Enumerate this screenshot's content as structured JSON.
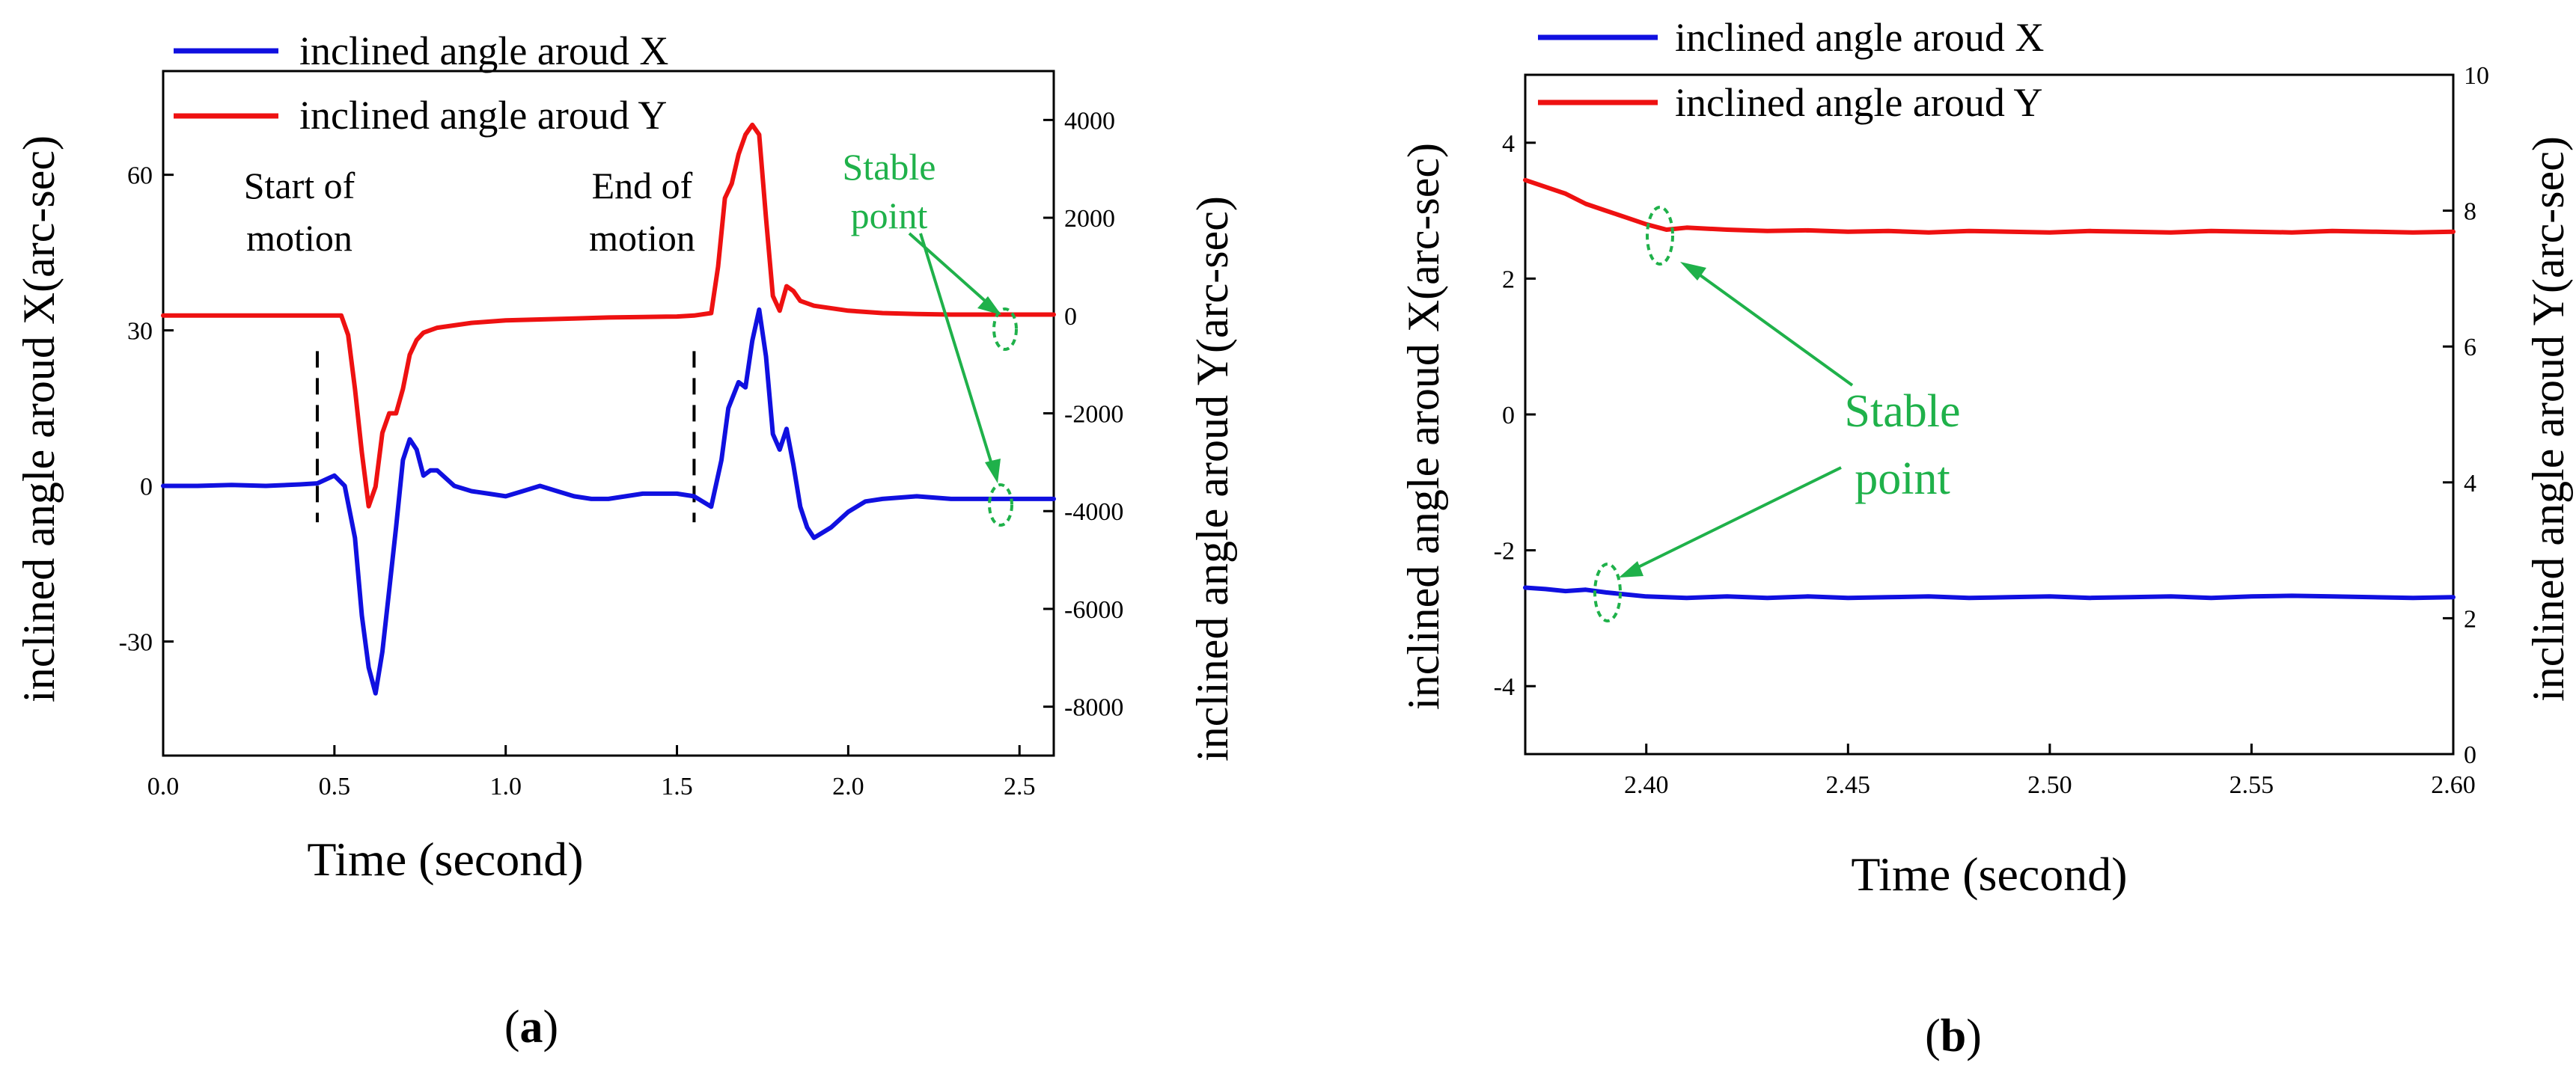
{
  "colors": {
    "series_x": "#1010e0",
    "series_y": "#ee1111",
    "annotation": "#1fb14a"
  },
  "panel_a_label": "a",
  "panel_b_label": "b",
  "chart_data": [
    {
      "id": "a",
      "type": "line",
      "xlabel": "Time (second)",
      "ylabel_left": "inclined angle aroud X(arc-sec)",
      "ylabel_right": "inclined angle aroud Y(arc-sec)",
      "xlim": [
        0.0,
        2.6
      ],
      "ylim_left": [
        -52,
        80
      ],
      "ylim_right": [
        -9000,
        5000
      ],
      "xticks": [
        "0.0",
        "0.5",
        "1.0",
        "1.5",
        "2.0",
        "2.5"
      ],
      "xtick_values": [
        0.0,
        0.5,
        1.0,
        1.5,
        2.0,
        2.5
      ],
      "yticks_left": [
        "-30",
        "0",
        "30",
        "60"
      ],
      "ytick_values_left": [
        -30,
        0,
        30,
        60
      ],
      "yticks_right": [
        "-8000",
        "-6000",
        "-4000",
        "-2000",
        "0",
        "2000",
        "4000"
      ],
      "ytick_values_right": [
        -8000,
        -6000,
        -4000,
        -2000,
        0,
        2000,
        4000
      ],
      "legend": [
        "inclined angle aroud X",
        "inclined angle aroud Y"
      ],
      "annotations": {
        "start": [
          "Start of",
          "motion"
        ],
        "end": [
          "End of",
          "motion"
        ],
        "stable": [
          "Stable",
          "point"
        ]
      },
      "markers_x": [
        0.45,
        1.55
      ],
      "series": [
        {
          "name": "inclined angle aroud X",
          "axis": "left",
          "x": [
            0.0,
            0.1,
            0.2,
            0.3,
            0.4,
            0.45,
            0.5,
            0.53,
            0.56,
            0.58,
            0.6,
            0.62,
            0.64,
            0.66,
            0.68,
            0.7,
            0.72,
            0.74,
            0.76,
            0.78,
            0.8,
            0.85,
            0.9,
            0.95,
            1.0,
            1.05,
            1.1,
            1.15,
            1.2,
            1.25,
            1.3,
            1.35,
            1.4,
            1.45,
            1.5,
            1.55,
            1.6,
            1.63,
            1.65,
            1.68,
            1.7,
            1.72,
            1.74,
            1.76,
            1.78,
            1.8,
            1.82,
            1.84,
            1.86,
            1.88,
            1.9,
            1.95,
            2.0,
            2.05,
            2.1,
            2.2,
            2.3,
            2.4,
            2.5,
            2.6
          ],
          "values": [
            0,
            0,
            0.2,
            0,
            0.3,
            0.5,
            2,
            0,
            -10,
            -25,
            -35,
            -40,
            -32,
            -20,
            -8,
            5,
            9,
            7,
            2,
            3,
            3,
            0,
            -1,
            -1.5,
            -2,
            -1,
            0,
            -1,
            -2,
            -2.5,
            -2.5,
            -2,
            -1.5,
            -1.5,
            -1.5,
            -2,
            -4,
            5,
            15,
            20,
            19,
            28,
            34,
            25,
            10,
            7,
            11,
            4,
            -4,
            -8,
            -10,
            -8,
            -5,
            -3,
            -2.5,
            -2,
            -2.5,
            -2.5,
            -2.5,
            -2.5
          ]
        },
        {
          "name": "inclined angle aroud Y",
          "axis": "right",
          "x": [
            0.0,
            0.1,
            0.2,
            0.3,
            0.4,
            0.5,
            0.52,
            0.54,
            0.56,
            0.58,
            0.6,
            0.62,
            0.64,
            0.66,
            0.68,
            0.7,
            0.72,
            0.74,
            0.76,
            0.8,
            0.9,
            1.0,
            1.1,
            1.2,
            1.3,
            1.4,
            1.5,
            1.55,
            1.6,
            1.62,
            1.64,
            1.66,
            1.68,
            1.7,
            1.72,
            1.74,
            1.76,
            1.78,
            1.8,
            1.82,
            1.84,
            1.86,
            1.9,
            2.0,
            2.1,
            2.2,
            2.3,
            2.4,
            2.5,
            2.6
          ],
          "values": [
            0,
            0,
            0,
            0,
            0,
            0,
            0,
            -400,
            -1500,
            -2800,
            -3900,
            -3500,
            -2400,
            -2000,
            -2000,
            -1500,
            -800,
            -500,
            -350,
            -250,
            -150,
            -100,
            -80,
            -60,
            -40,
            -30,
            -20,
            0,
            50,
            1000,
            2400,
            2700,
            3300,
            3700,
            3900,
            3700,
            2000,
            400,
            100,
            600,
            500,
            300,
            200,
            100,
            50,
            30,
            20,
            20,
            20,
            20
          ]
        }
      ]
    },
    {
      "id": "b",
      "type": "line",
      "xlabel": "Time (second)",
      "ylabel_left": "inclined angle aroud X(arc-sec)",
      "ylabel_right": "inclined angle aroud Y(arc-sec)",
      "xlim": [
        2.37,
        2.6
      ],
      "ylim_left": [
        -5,
        5
      ],
      "ylim_right": [
        0,
        10
      ],
      "xticks": [
        "2.40",
        "2.45",
        "2.50",
        "2.55",
        "2.60"
      ],
      "xtick_values": [
        2.4,
        2.45,
        2.5,
        2.55,
        2.6
      ],
      "yticks_left": [
        "-4",
        "-2",
        "0",
        "2",
        "4"
      ],
      "ytick_values_left": [
        -4,
        -2,
        0,
        2,
        4
      ],
      "yticks_right": [
        "0",
        "2",
        "4",
        "6",
        "8",
        "10"
      ],
      "ytick_values_right": [
        0,
        2,
        4,
        6,
        8,
        10
      ],
      "legend": [
        "inclined angle aroud X",
        "inclined angle aroud Y"
      ],
      "annotations": {
        "stable": [
          "Stable",
          "point"
        ]
      },
      "series": [
        {
          "name": "inclined angle aroud X",
          "axis": "left",
          "x": [
            2.37,
            2.375,
            2.38,
            2.385,
            2.39,
            2.395,
            2.4,
            2.41,
            2.42,
            2.43,
            2.44,
            2.45,
            2.46,
            2.47,
            2.48,
            2.49,
            2.5,
            2.51,
            2.52,
            2.53,
            2.54,
            2.55,
            2.56,
            2.57,
            2.58,
            2.59,
            2.6
          ],
          "values": [
            -2.55,
            -2.57,
            -2.6,
            -2.58,
            -2.62,
            -2.65,
            -2.68,
            -2.7,
            -2.68,
            -2.7,
            -2.68,
            -2.7,
            -2.69,
            -2.68,
            -2.7,
            -2.69,
            -2.68,
            -2.7,
            -2.69,
            -2.68,
            -2.7,
            -2.68,
            -2.67,
            -2.68,
            -2.69,
            -2.7,
            -2.69
          ]
        },
        {
          "name": "inclined angle aroud Y",
          "axis": "right",
          "x": [
            2.37,
            2.375,
            2.38,
            2.385,
            2.39,
            2.395,
            2.4,
            2.405,
            2.41,
            2.42,
            2.43,
            2.44,
            2.45,
            2.46,
            2.47,
            2.48,
            2.49,
            2.5,
            2.51,
            2.52,
            2.53,
            2.54,
            2.55,
            2.56,
            2.57,
            2.58,
            2.59,
            2.6
          ],
          "values": [
            8.45,
            8.35,
            8.25,
            8.1,
            8.0,
            7.9,
            7.8,
            7.72,
            7.75,
            7.72,
            7.7,
            7.71,
            7.69,
            7.7,
            7.68,
            7.7,
            7.69,
            7.68,
            7.7,
            7.69,
            7.68,
            7.7,
            7.69,
            7.68,
            7.7,
            7.69,
            7.68,
            7.69
          ]
        }
      ]
    }
  ]
}
